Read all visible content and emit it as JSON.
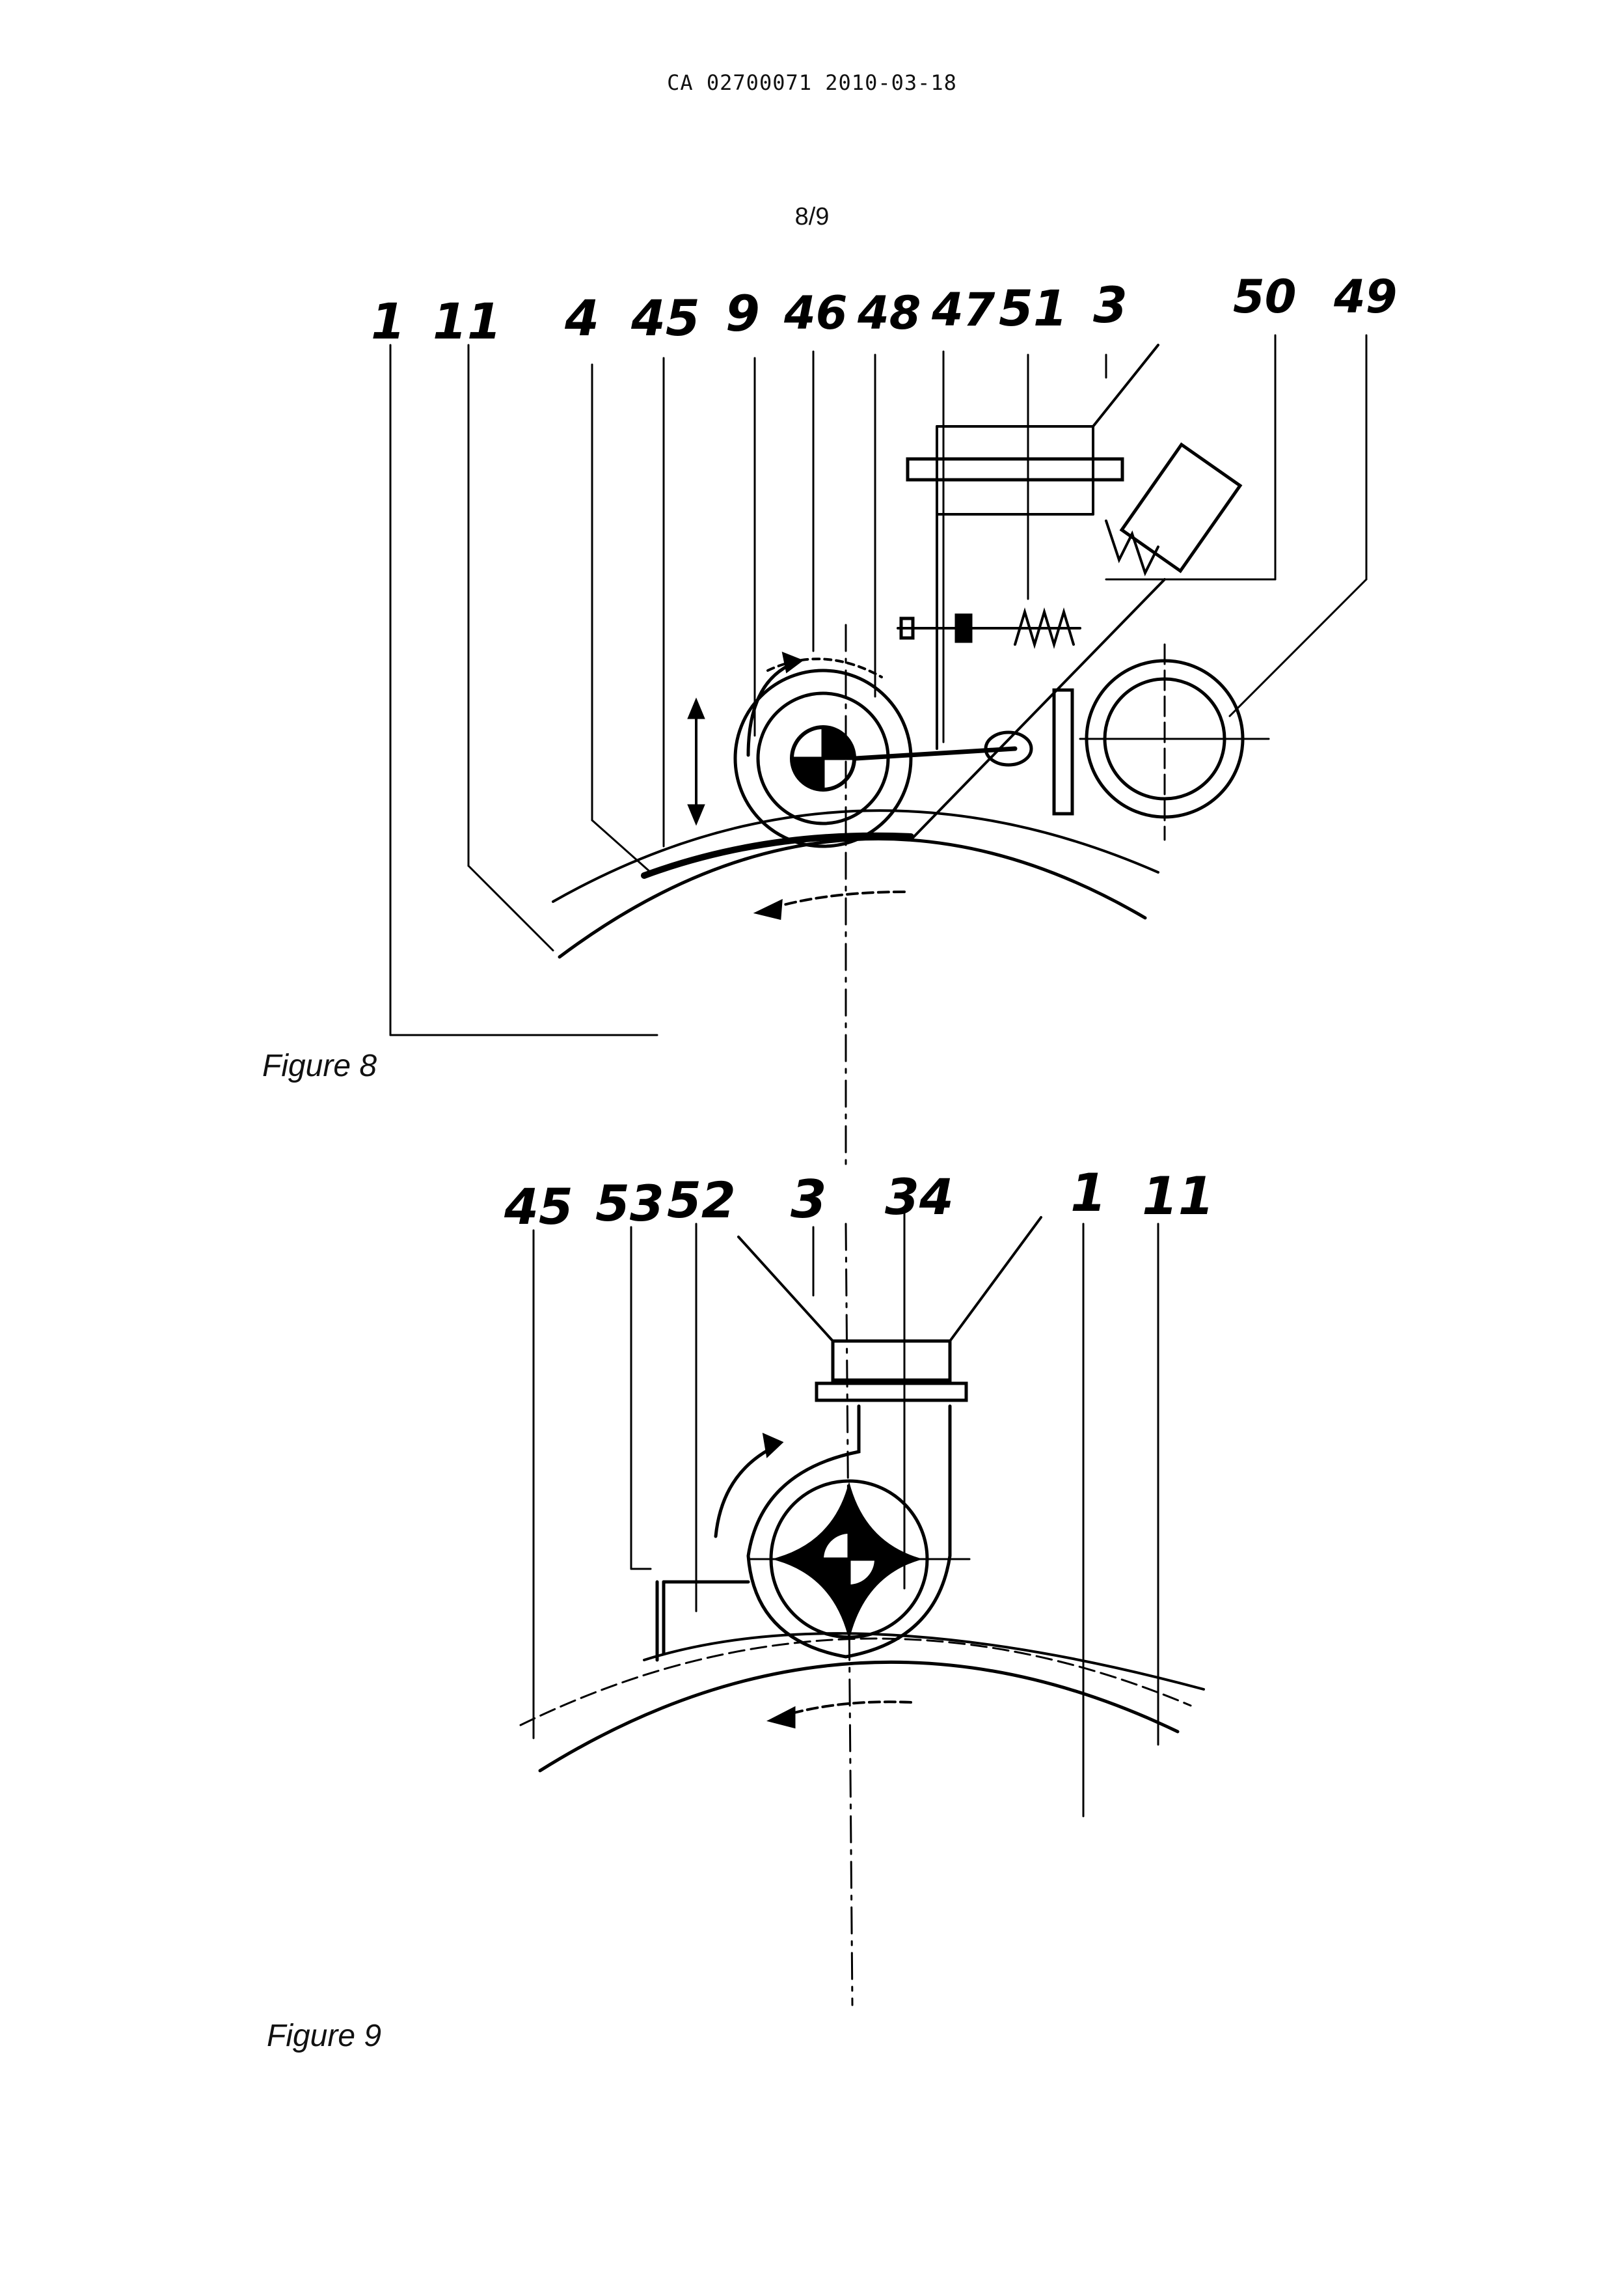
{
  "header": {
    "doc_id": "CA 02700071 2010-03-18",
    "page": "8/9"
  },
  "figure8": {
    "caption": "Figure 8",
    "labels": {
      "l1": "1",
      "l11": "11",
      "l4": "4",
      "l45": "45",
      "l9": "9",
      "l46": "46",
      "l48": "48",
      "l47": "47",
      "l51": "51",
      "l3": "3",
      "l50": "50",
      "l49": "49"
    }
  },
  "figure9": {
    "caption": "Figure 9",
    "labels": {
      "l45": "45",
      "l53": "53",
      "l52": "52",
      "l3": "3",
      "l34": "34",
      "l1": "1",
      "l11": "11"
    }
  }
}
